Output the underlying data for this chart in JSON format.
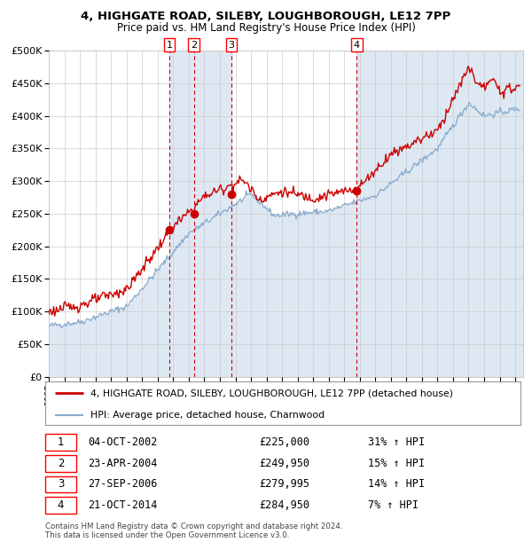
{
  "title": "4, HIGHGATE ROAD, SILEBY, LOUGHBOROUGH, LE12 7PP",
  "subtitle": "Price paid vs. HM Land Registry's House Price Index (HPI)",
  "legend_line1": "4, HIGHGATE ROAD, SILEBY, LOUGHBOROUGH, LE12 7PP (detached house)",
  "legend_line2": "HPI: Average price, detached house, Charnwood",
  "footer1": "Contains HM Land Registry data © Crown copyright and database right 2024.",
  "footer2": "This data is licensed under the Open Government Licence v3.0.",
  "transactions": [
    {
      "num": 1,
      "date": "04-OCT-2002",
      "price": "£225,000",
      "pct": "31%",
      "dir": "↑"
    },
    {
      "num": 2,
      "date": "23-APR-2004",
      "price": "£249,950",
      "pct": "15%",
      "dir": "↑"
    },
    {
      "num": 3,
      "date": "27-SEP-2006",
      "price": "£279,995",
      "pct": "14%",
      "dir": "↑"
    },
    {
      "num": 4,
      "date": "21-OCT-2014",
      "price": "£284,950",
      "pct": "7%",
      "dir": "↑"
    }
  ],
  "transaction_dates_decimal": [
    2002.76,
    2004.32,
    2006.74,
    2014.8
  ],
  "transaction_prices": [
    225000,
    249950,
    279995,
    284950
  ],
  "red_line_color": "#cc0000",
  "blue_line_color": "#88aacc",
  "fill_color": "#ccdaee",
  "dashed_color": "#cc0000",
  "background_color": "#ffffff",
  "grid_color": "#cccccc",
  "ylim": [
    0,
    500000
  ],
  "xlim_start": 1995.0,
  "xlim_end": 2025.5,
  "yticks": [
    0,
    50000,
    100000,
    150000,
    200000,
    250000,
    300000,
    350000,
    400000,
    450000,
    500000
  ]
}
